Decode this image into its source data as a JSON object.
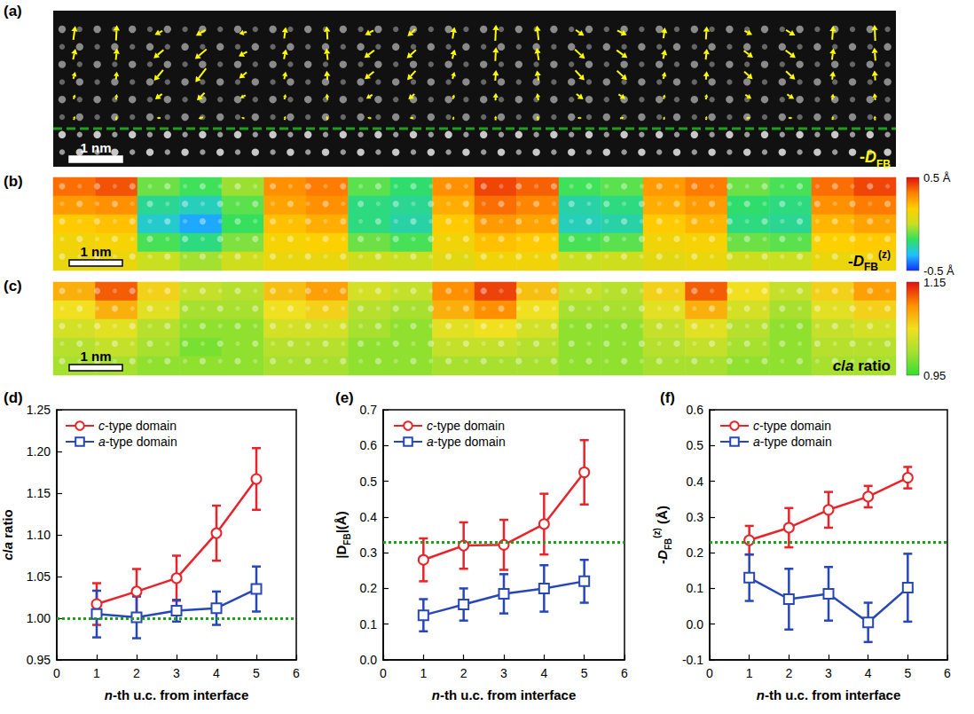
{
  "chart_data": [
    {
      "type": "vector_map",
      "letter": "(a)",
      "label": [
        {
          "text": "-"
        },
        {
          "text": "D",
          "italic": true
        },
        {
          "text": "FB",
          "sub": true
        }
      ],
      "scale_bar": "1 nm",
      "color": "#ffff00",
      "dx": [
        [
          0.05,
          0.02,
          -0.2,
          -0.25,
          -0.2,
          0.04,
          -0.02,
          -0.22,
          -0.2,
          0.05,
          0.02,
          -0.04,
          0.22,
          0.25,
          0.04,
          0.02,
          0.2,
          0.24,
          0.03,
          -0.02
        ],
        [
          0.06,
          0.03,
          -0.26,
          -0.3,
          -0.22,
          0.05,
          -0.03,
          -0.26,
          -0.24,
          0.06,
          0.02,
          -0.05,
          0.26,
          0.28,
          0.05,
          0.03,
          0.24,
          0.26,
          0.04,
          -0.03
        ],
        [
          0.05,
          0.02,
          -0.24,
          -0.28,
          -0.2,
          0.04,
          -0.02,
          -0.24,
          -0.22,
          0.05,
          0.02,
          -0.04,
          0.24,
          0.26,
          0.04,
          0.02,
          0.22,
          0.24,
          0.03,
          -0.02
        ],
        [
          0.04,
          0.02,
          -0.18,
          -0.2,
          -0.14,
          0.03,
          -0.02,
          -0.16,
          -0.16,
          0.04,
          0.01,
          -0.03,
          0.18,
          0.18,
          0.03,
          0.02,
          0.16,
          0.18,
          0.02,
          -0.02
        ],
        [
          0.03,
          0.01,
          -0.1,
          -0.12,
          -0.08,
          0.02,
          -0.01,
          -0.1,
          -0.1,
          0.02,
          0.01,
          -0.02,
          0.1,
          0.1,
          0.02,
          0.01,
          0.1,
          0.1,
          0.01,
          -0.01
        ]
      ],
      "dz": [
        [
          0.36,
          0.4,
          -0.1,
          -0.15,
          -0.05,
          0.3,
          0.34,
          -0.12,
          -0.18,
          0.3,
          0.42,
          0.38,
          -0.15,
          -0.12,
          0.28,
          0.34,
          -0.1,
          -0.14,
          0.36,
          0.42
        ],
        [
          0.28,
          0.3,
          -0.22,
          -0.26,
          -0.12,
          0.26,
          0.3,
          -0.2,
          -0.22,
          0.24,
          0.36,
          0.32,
          -0.24,
          -0.2,
          0.24,
          0.28,
          -0.18,
          -0.2,
          0.3,
          0.34
        ],
        [
          0.18,
          0.2,
          -0.28,
          -0.36,
          -0.16,
          0.2,
          0.24,
          -0.2,
          -0.24,
          0.18,
          0.28,
          0.26,
          -0.26,
          -0.24,
          0.18,
          0.22,
          -0.2,
          -0.22,
          0.22,
          0.26
        ],
        [
          0.12,
          0.14,
          -0.14,
          -0.2,
          -0.08,
          0.14,
          0.16,
          -0.1,
          -0.14,
          0.12,
          0.2,
          0.18,
          -0.14,
          -0.12,
          0.12,
          0.14,
          -0.1,
          -0.12,
          0.16,
          0.18
        ],
        [
          0.1,
          0.1,
          0.0,
          -0.04,
          0.02,
          0.1,
          0.1,
          0.02,
          0.0,
          0.08,
          0.12,
          0.12,
          0.0,
          0.02,
          0.08,
          0.1,
          0.02,
          0.0,
          0.1,
          0.12
        ]
      ]
    },
    {
      "type": "heatmap",
      "letter": "(b)",
      "label": [
        {
          "text": "-"
        },
        {
          "text": "D",
          "italic": true
        },
        {
          "text": "FB",
          "sub": true
        },
        {
          "text": "(z)",
          "sup": true
        }
      ],
      "scale_bar": "1 nm",
      "cells": [
        [
          0.36,
          0.4,
          -0.1,
          -0.15,
          -0.05,
          0.3,
          0.34,
          -0.12,
          -0.18,
          0.3,
          0.42,
          0.38,
          -0.15,
          -0.12,
          0.28,
          0.34,
          -0.1,
          -0.14,
          0.36,
          0.42
        ],
        [
          0.28,
          0.3,
          -0.22,
          -0.26,
          -0.12,
          0.26,
          0.3,
          -0.2,
          -0.22,
          0.24,
          0.36,
          0.32,
          -0.24,
          -0.2,
          0.24,
          0.28,
          -0.18,
          -0.2,
          0.3,
          0.34
        ],
        [
          0.18,
          0.2,
          -0.28,
          -0.36,
          -0.16,
          0.2,
          0.24,
          -0.2,
          -0.24,
          0.18,
          0.28,
          0.26,
          -0.26,
          -0.24,
          0.18,
          0.22,
          -0.2,
          -0.22,
          0.22,
          0.26
        ],
        [
          0.12,
          0.14,
          -0.14,
          -0.2,
          -0.08,
          0.14,
          0.16,
          -0.1,
          -0.14,
          0.12,
          0.2,
          0.18,
          -0.14,
          -0.12,
          0.12,
          0.14,
          -0.1,
          -0.12,
          0.16,
          0.18
        ],
        [
          0.1,
          0.1,
          0.0,
          -0.04,
          0.02,
          0.1,
          0.1,
          0.02,
          0.0,
          0.08,
          0.12,
          0.12,
          0.0,
          0.02,
          0.08,
          0.1,
          0.02,
          0.0,
          0.1,
          0.12
        ]
      ],
      "colorbar": {
        "range": [
          -0.5,
          0.5
        ],
        "ticks": [
          {
            "value": 0.5,
            "label": "0.5 Å"
          },
          {
            "value": -0.5,
            "label": "-0.5 Å"
          }
        ]
      }
    },
    {
      "type": "heatmap",
      "letter": "(c)",
      "label": [
        {
          "text": "c",
          "italic": true
        },
        {
          "text": "/"
        },
        {
          "text": "a",
          "italic": true
        },
        {
          "text": " ratio"
        }
      ],
      "scale_bar": "1 nm",
      "cells": [
        [
          1.08,
          1.12,
          1.06,
          1.02,
          1.01,
          1.07,
          1.09,
          1.03,
          1.02,
          1.1,
          1.13,
          1.07,
          1.02,
          1.01,
          1.06,
          1.12,
          1.05,
          1.02,
          1.06,
          1.09
        ],
        [
          1.05,
          1.08,
          1.04,
          1.0,
          1.0,
          1.05,
          1.06,
          1.01,
          1.0,
          1.08,
          1.1,
          1.05,
          1.0,
          1.0,
          1.04,
          1.08,
          1.03,
          1.0,
          1.04,
          1.06
        ],
        [
          1.03,
          1.04,
          1.01,
          0.99,
          0.99,
          1.03,
          1.03,
          1.0,
          0.99,
          1.04,
          1.05,
          1.03,
          0.99,
          0.99,
          1.02,
          1.04,
          1.01,
          0.99,
          1.02,
          1.03
        ],
        [
          1.01,
          1.02,
          1.0,
          0.98,
          0.99,
          1.01,
          1.01,
          0.99,
          0.99,
          1.02,
          1.02,
          1.01,
          0.99,
          0.99,
          1.01,
          1.02,
          1.0,
          0.99,
          1.01,
          1.01
        ],
        [
          1.0,
          1.0,
          0.99,
          0.99,
          0.99,
          1.0,
          1.0,
          0.99,
          0.99,
          1.0,
          1.0,
          1.0,
          0.99,
          0.99,
          1.0,
          1.0,
          0.99,
          0.99,
          1.0,
          1.0
        ]
      ],
      "colorbar": {
        "range": [
          0.95,
          1.15
        ],
        "ticks": [
          1.15,
          0.95
        ]
      }
    },
    {
      "type": "line",
      "letter": "(d)",
      "x_label": [
        {
          "text": "n",
          "italic": true
        },
        {
          "text": "-th u.c. from interface"
        }
      ],
      "y_label": [
        {
          "text": "c",
          "italic": true
        },
        {
          "text": "/"
        },
        {
          "text": "a",
          "italic": true
        },
        {
          "text": " ratio"
        }
      ],
      "x": [
        1,
        2,
        3,
        4,
        5
      ],
      "xlim": [
        0,
        6
      ],
      "xticks": [
        0,
        1,
        2,
        3,
        4,
        5,
        6
      ],
      "ylim": [
        0.95,
        1.25
      ],
      "yticks": [
        0.95,
        {
          "value": 1,
          "label": "1.00"
        },
        1.05,
        {
          "value": 1.1,
          "label": "1.10"
        },
        1.15,
        {
          "value": 1.2,
          "label": "1.20"
        },
        1.25
      ],
      "grid": false,
      "legend": "upper left",
      "reference_line": {
        "value": 1.0,
        "color": "#1f9e1f",
        "line_style": "dotted"
      },
      "series": [
        {
          "name": "c-type domain",
          "color": "#e8232a",
          "marker": "circle",
          "values": [
            1.017,
            1.032,
            1.048,
            1.102,
            1.167
          ],
          "errors": [
            0.025,
            0.027,
            0.027,
            0.033,
            0.037
          ]
        },
        {
          "name": "a-type domain",
          "color": "#2747b8",
          "marker": "square",
          "values": [
            1.005,
            1.001,
            1.009,
            1.012,
            1.035
          ],
          "errors": [
            0.028,
            0.025,
            0.013,
            0.02,
            0.027
          ]
        }
      ]
    },
    {
      "type": "line",
      "letter": "(e)",
      "x_label": [
        {
          "text": "n",
          "italic": true
        },
        {
          "text": "-th u.c. from interface"
        }
      ],
      "y_label": [
        {
          "text": "|D"
        },
        {
          "text": "FB",
          "sub": true
        },
        {
          "text": "|(Å)"
        }
      ],
      "x": [
        1,
        2,
        3,
        4,
        5
      ],
      "xlim": [
        0,
        6
      ],
      "xticks": [
        0,
        1,
        2,
        3,
        4,
        5,
        6
      ],
      "ylim": [
        0,
        0.7
      ],
      "yticks": [
        {
          "value": 0,
          "label": "0.0"
        },
        0.1,
        0.2,
        0.3,
        0.4,
        0.5,
        0.6,
        0.7
      ],
      "grid": false,
      "legend": "upper left",
      "reference_line": {
        "value": 0.33,
        "color": "#1f9e1f",
        "line_style": "dotted"
      },
      "series": [
        {
          "name": "c-type domain",
          "color": "#e8232a",
          "marker": "circle",
          "values": [
            0.28,
            0.32,
            0.322,
            0.38,
            0.525
          ],
          "errors": [
            0.06,
            0.065,
            0.07,
            0.085,
            0.09
          ]
        },
        {
          "name": "a-type domain",
          "color": "#2747b8",
          "marker": "square",
          "values": [
            0.125,
            0.155,
            0.185,
            0.2,
            0.22
          ],
          "errors": [
            0.045,
            0.045,
            0.055,
            0.065,
            0.06
          ]
        }
      ]
    },
    {
      "type": "line",
      "letter": "(f)",
      "x_label": [
        {
          "text": "n",
          "italic": true
        },
        {
          "text": "-th u.c. from interface"
        }
      ],
      "y_label": [
        {
          "text": "-D",
          "italic": true
        },
        {
          "text": "FB",
          "sub": true
        },
        {
          "text": "(z)",
          "sup": true
        },
        {
          "text": " (Å)"
        }
      ],
      "x": [
        1,
        2,
        3,
        4,
        5
      ],
      "xlim": [
        0,
        6
      ],
      "xticks": [
        0,
        1,
        2,
        3,
        4,
        5,
        6
      ],
      "ylim": [
        -0.1,
        0.6
      ],
      "yticks": [
        -0.1,
        {
          "value": 0,
          "label": "0.0"
        },
        0.1,
        0.2,
        0.3,
        0.4,
        0.5,
        0.6
      ],
      "grid": false,
      "legend": "upper left",
      "reference_line": {
        "value": 0.23,
        "color": "#1f9e1f",
        "line_style": "dotted"
      },
      "series": [
        {
          "name": "c-type domain",
          "color": "#e8232a",
          "marker": "circle",
          "values": [
            0.235,
            0.27,
            0.32,
            0.357,
            0.41
          ],
          "errors": [
            0.04,
            0.055,
            0.05,
            0.03,
            0.03
          ]
        },
        {
          "name": "a-type domain",
          "color": "#2747b8",
          "marker": "square",
          "values": [
            0.13,
            0.07,
            0.085,
            0.005,
            0.102
          ],
          "errors": [
            0.065,
            0.085,
            0.075,
            0.055,
            0.095
          ]
        }
      ]
    }
  ]
}
